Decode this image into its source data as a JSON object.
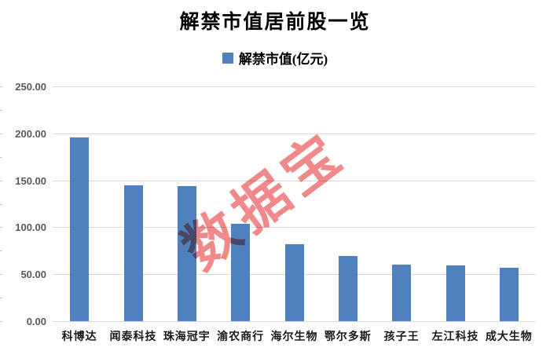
{
  "chart": {
    "title": "解禁市值居前股一览",
    "legend": {
      "label": "解禁市值(亿元)",
      "marker_color": "#4E81BD"
    },
    "watermark": "数据宝",
    "colors": {
      "bar": "#4E81BD",
      "gridline": "#D9D9D9",
      "y_label": "#595959",
      "x_label": "#1A1A1A",
      "title": "#000000",
      "watermark": "#EF8080"
    }
  },
  "chart_data": {
    "type": "bar",
    "title": "解禁市值居前股一览",
    "legend_entries": [
      "解禁市值(亿元)"
    ],
    "legend_position": "top",
    "categories": [
      "科博达",
      "闻泰科技",
      "珠海冠宇",
      "渝农商行",
      "海尔生物",
      "鄂尔多斯",
      "孩子王",
      "左江科技",
      "成大生物"
    ],
    "series": [
      {
        "name": "解禁市值(亿元)",
        "values": [
          196,
          145,
          144,
          104,
          82,
          69,
          60,
          59,
          57
        ]
      }
    ],
    "unit": "亿元",
    "xlabel": "",
    "ylabel": "",
    "ylim": [
      0,
      250
    ],
    "ytick_labels": [
      "250.00",
      "200.00",
      "150.00",
      "100.00",
      "50.00",
      "0.00"
    ],
    "ytick_values": [
      250,
      200,
      150,
      100,
      50,
      0
    ],
    "grid": true,
    "annotations": [
      "数据宝"
    ]
  }
}
